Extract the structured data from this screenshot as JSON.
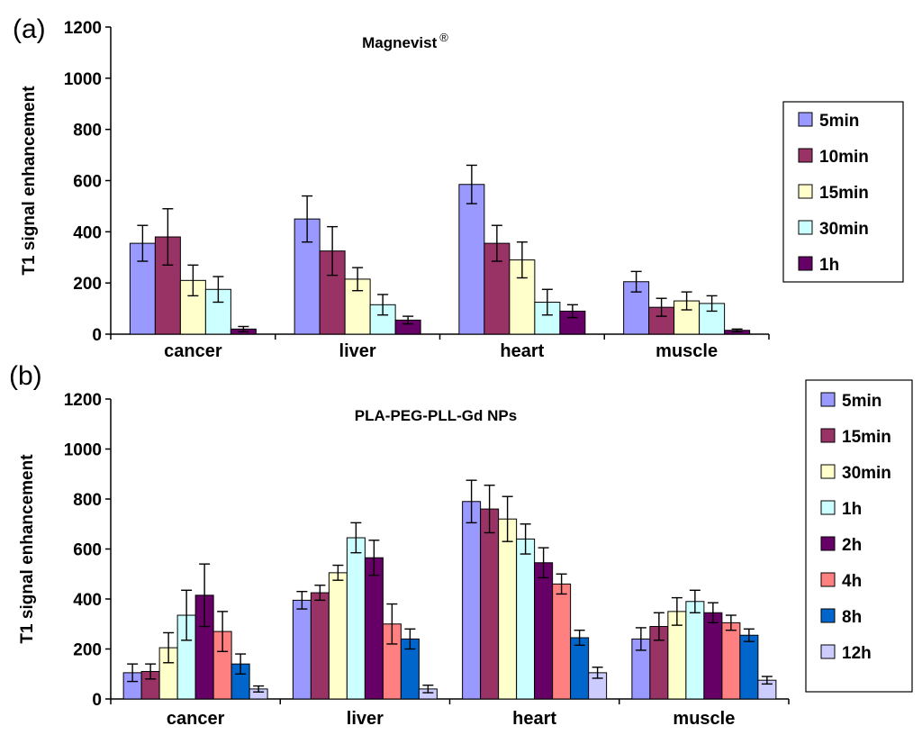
{
  "chart_data": [
    {
      "type": "bar",
      "panel_label": "(a)",
      "title": "Magnevist",
      "title_superscript": "®",
      "xlabel": "",
      "ylabel": "T1 signal enhancement",
      "ylim": [
        0,
        1200
      ],
      "yticks": [
        "0",
        "200",
        "400",
        "600",
        "800",
        "1000",
        "1200"
      ],
      "categories": [
        "cancer",
        "liver",
        "heart",
        "muscle"
      ],
      "series": [
        {
          "name": "5min",
          "color": "#9999ff",
          "values": [
            355,
            450,
            585,
            205
          ],
          "errors": [
            70,
            90,
            75,
            40
          ]
        },
        {
          "name": "10min",
          "color": "#993366",
          "values": [
            380,
            325,
            355,
            105
          ],
          "errors": [
            110,
            95,
            70,
            35
          ]
        },
        {
          "name": "15min",
          "color": "#ffffcc",
          "values": [
            210,
            215,
            290,
            130
          ],
          "errors": [
            60,
            45,
            70,
            35
          ]
        },
        {
          "name": "30min",
          "color": "#ccffff",
          "values": [
            175,
            115,
            125,
            120
          ],
          "errors": [
            50,
            40,
            50,
            30
          ]
        },
        {
          "name": "1h",
          "color": "#660066",
          "values": [
            20,
            55,
            90,
            15
          ],
          "errors": [
            10,
            15,
            25,
            5
          ]
        }
      ],
      "legend_position": "right"
    },
    {
      "type": "bar",
      "panel_label": "(b)",
      "title": "PLA-PEG-PLL-Gd NPs",
      "title_superscript": "",
      "xlabel": "",
      "ylabel": "T1 signal enhancement",
      "ylim": [
        0,
        1200
      ],
      "yticks": [
        "0",
        "200",
        "400",
        "600",
        "800",
        "1000",
        "1200"
      ],
      "categories": [
        "cancer",
        "liver",
        "heart",
        "muscle"
      ],
      "series": [
        {
          "name": "5min",
          "color": "#9999ff",
          "values": [
            105,
            395,
            790,
            240
          ],
          "errors": [
            35,
            35,
            85,
            45
          ]
        },
        {
          "name": "15min",
          "color": "#993366",
          "values": [
            110,
            425,
            760,
            290
          ],
          "errors": [
            30,
            30,
            95,
            55
          ]
        },
        {
          "name": "30min",
          "color": "#ffffcc",
          "values": [
            205,
            505,
            720,
            350
          ],
          "errors": [
            60,
            30,
            90,
            55
          ]
        },
        {
          "name": "1h",
          "color": "#ccffff",
          "values": [
            335,
            645,
            640,
            390
          ],
          "errors": [
            100,
            60,
            60,
            45
          ]
        },
        {
          "name": "2h",
          "color": "#660066",
          "values": [
            415,
            565,
            545,
            345
          ],
          "errors": [
            125,
            70,
            60,
            40
          ]
        },
        {
          "name": "4h",
          "color": "#ff8080",
          "values": [
            270,
            300,
            460,
            305
          ],
          "errors": [
            80,
            80,
            40,
            30
          ]
        },
        {
          "name": "8h",
          "color": "#0066cc",
          "values": [
            140,
            240,
            245,
            255
          ],
          "errors": [
            40,
            40,
            30,
            25
          ]
        },
        {
          "name": "12h",
          "color": "#ccccff",
          "values": [
            40,
            40,
            105,
            75
          ],
          "errors": [
            12,
            15,
            22,
            15
          ]
        }
      ],
      "legend_position": "right"
    }
  ]
}
